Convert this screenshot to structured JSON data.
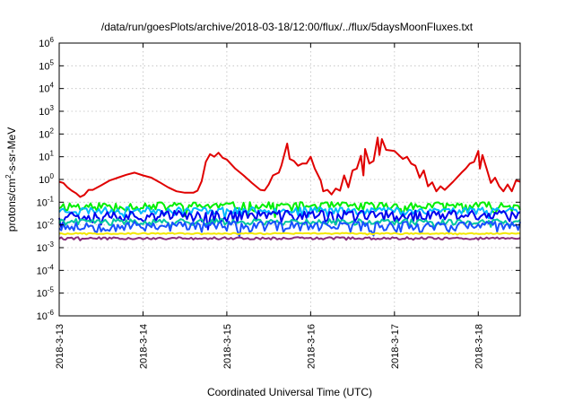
{
  "chart_data": {
    "type": "line",
    "title": "/data/run/goesPlots/archive/2018-03-18/12:00/flux/../flux/5daysMoonFluxes.txt",
    "xlabel": "Coordinated Universal Time (UTC)",
    "ylabel": {
      "pre": "protons/cm",
      "sup": "2",
      "post": "-s-sr-MeV"
    },
    "yscale": "log",
    "ylim": [
      1e-06,
      1000000.0
    ],
    "xlim": [
      0,
      5.5
    ],
    "grid": true,
    "legend": "none",
    "x_ticks": [
      {
        "x": 0,
        "label": "2018-3-13"
      },
      {
        "x": 1,
        "label": "2018-3-14"
      },
      {
        "x": 2,
        "label": "2018-3-15"
      },
      {
        "x": 3,
        "label": "2018-3-16"
      },
      {
        "x": 4,
        "label": "2018-3-17"
      },
      {
        "x": 5,
        "label": "2018-3-18"
      }
    ],
    "y_ticks": [
      {
        "value": 1000000.0,
        "base": "10",
        "exp": "6"
      },
      {
        "value": 100000.0,
        "base": "10",
        "exp": "5"
      },
      {
        "value": 10000.0,
        "base": "10",
        "exp": "4"
      },
      {
        "value": 1000.0,
        "base": "10",
        "exp": "3"
      },
      {
        "value": 100.0,
        "base": "10",
        "exp": "2"
      },
      {
        "value": 10.0,
        "base": "10",
        "exp": "1"
      },
      {
        "value": 1.0,
        "base": "10",
        "exp": "0"
      },
      {
        "value": 0.1,
        "base": "10",
        "exp": "-1"
      },
      {
        "value": 0.01,
        "base": "10",
        "exp": "-2"
      },
      {
        "value": 0.001,
        "base": "10",
        "exp": "-3"
      },
      {
        "value": 0.0001,
        "base": "10",
        "exp": "-4"
      },
      {
        "value": 1e-05,
        "base": "10",
        "exp": "-5"
      },
      {
        "value": 1e-06,
        "base": "10",
        "exp": "-6"
      }
    ],
    "series": [
      {
        "color": "#e00000",
        "points": [
          [
            0.0,
            0.8
          ],
          [
            0.05,
            0.7
          ],
          [
            0.1,
            0.45
          ],
          [
            0.15,
            0.32
          ],
          [
            0.2,
            0.25
          ],
          [
            0.25,
            0.17
          ],
          [
            0.3,
            0.21
          ],
          [
            0.35,
            0.35
          ],
          [
            0.4,
            0.35
          ],
          [
            0.5,
            0.55
          ],
          [
            0.6,
            0.9
          ],
          [
            0.7,
            1.2
          ],
          [
            0.8,
            1.6
          ],
          [
            0.9,
            2.0
          ],
          [
            1.0,
            1.5
          ],
          [
            1.1,
            1.2
          ],
          [
            1.2,
            0.75
          ],
          [
            1.3,
            0.45
          ],
          [
            1.4,
            0.3
          ],
          [
            1.5,
            0.26
          ],
          [
            1.6,
            0.26
          ],
          [
            1.65,
            0.32
          ],
          [
            1.7,
            0.85
          ],
          [
            1.75,
            6.0
          ],
          [
            1.8,
            13
          ],
          [
            1.85,
            10
          ],
          [
            1.9,
            15
          ],
          [
            1.95,
            9
          ],
          [
            2.0,
            7.5
          ],
          [
            2.1,
            3.0
          ],
          [
            2.2,
            1.5
          ],
          [
            2.3,
            0.7
          ],
          [
            2.4,
            0.35
          ],
          [
            2.45,
            0.33
          ],
          [
            2.5,
            0.6
          ],
          [
            2.55,
            1.5
          ],
          [
            2.62,
            2.0
          ],
          [
            2.65,
            4.0
          ],
          [
            2.72,
            38
          ],
          [
            2.75,
            8
          ],
          [
            2.8,
            6.5
          ],
          [
            2.85,
            4
          ],
          [
            2.9,
            5
          ],
          [
            2.95,
            5
          ],
          [
            3.0,
            10
          ],
          [
            3.05,
            3
          ],
          [
            3.12,
            0.9
          ],
          [
            3.15,
            0.3
          ],
          [
            3.2,
            0.35
          ],
          [
            3.25,
            0.22
          ],
          [
            3.3,
            0.4
          ],
          [
            3.35,
            0.32
          ],
          [
            3.4,
            1.5
          ],
          [
            3.45,
            0.45
          ],
          [
            3.5,
            2.5
          ],
          [
            3.55,
            3.0
          ],
          [
            3.6,
            11
          ],
          [
            3.63,
            1.5
          ],
          [
            3.65,
            22
          ],
          [
            3.7,
            5
          ],
          [
            3.75,
            6.5
          ],
          [
            3.8,
            70
          ],
          [
            3.82,
            12
          ],
          [
            3.85,
            60
          ],
          [
            3.9,
            20
          ],
          [
            4.0,
            18
          ],
          [
            4.05,
            12
          ],
          [
            4.1,
            8
          ],
          [
            4.15,
            10
          ],
          [
            4.2,
            5
          ],
          [
            4.25,
            4
          ],
          [
            4.3,
            1.2
          ],
          [
            4.35,
            2.5
          ],
          [
            4.4,
            0.5
          ],
          [
            4.45,
            0.75
          ],
          [
            4.5,
            0.3
          ],
          [
            4.55,
            0.5
          ],
          [
            4.6,
            0.35
          ],
          [
            4.7,
            0.8
          ],
          [
            4.8,
            2.0
          ],
          [
            4.85,
            3.0
          ],
          [
            4.9,
            5.0
          ],
          [
            4.95,
            6.0
          ],
          [
            5.0,
            18
          ],
          [
            5.02,
            3.0
          ],
          [
            5.05,
            12
          ],
          [
            5.1,
            3.0
          ],
          [
            5.15,
            0.7
          ],
          [
            5.2,
            1.2
          ],
          [
            5.25,
            0.5
          ],
          [
            5.3,
            0.3
          ],
          [
            5.35,
            0.6
          ],
          [
            5.4,
            0.3
          ],
          [
            5.45,
            0.9
          ],
          [
            5.5,
            0.8
          ]
        ]
      },
      {
        "color": "#00ee00",
        "level": 0.07,
        "jitter": 0.45,
        "seed": 11
      },
      {
        "color": "#00b8ff",
        "level": 0.045,
        "jitter": 0.35,
        "seed": 23
      },
      {
        "color": "#0000ee",
        "level": 0.028,
        "jitter": 0.55,
        "seed": 37
      },
      {
        "color": "#00c8a0",
        "level": 0.014,
        "jitter": 0.3,
        "seed": 41
      },
      {
        "color": "#1850ff",
        "level": 0.0095,
        "jitter": 0.5,
        "seed": 53
      },
      {
        "color": "#f2e800",
        "level": 0.0042,
        "jitter": 0.06,
        "seed": 67
      },
      {
        "color": "#8a2c7a",
        "level": 0.0026,
        "jitter": 0.12,
        "seed": 79
      }
    ]
  }
}
